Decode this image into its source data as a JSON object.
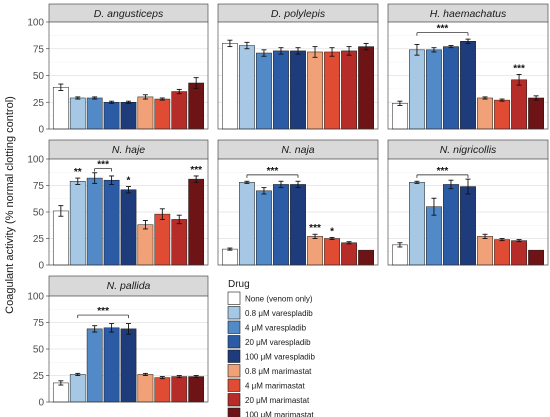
{
  "figure": {
    "ylabel": "Coagulant activity (% normal clotting control)",
    "legend_title": "Drug"
  },
  "treatments": [
    {
      "label": "None (venom only)",
      "color": "#ffffff"
    },
    {
      "label": "0.8 μM varespladib",
      "color": "#a6c8e4"
    },
    {
      "label": "4 μM varespladib",
      "color": "#5289c7"
    },
    {
      "label": "20 μM varespladib",
      "color": "#2c5ba6"
    },
    {
      "label": "100 μM varespladib",
      "color": "#1e3c7c"
    },
    {
      "label": "0.8 μM marimastat",
      "color": "#f0a178"
    },
    {
      "label": "4 μM marimastat",
      "color": "#e04b33"
    },
    {
      "label": "20 μM marimastat",
      "color": "#b52c29"
    },
    {
      "label": "100 μM marimastat",
      "color": "#6e1416"
    }
  ],
  "chart_data": [
    {
      "type": "bar",
      "title": "D. angusticeps",
      "ylim": [
        0,
        100
      ],
      "yticks": [
        "0",
        "25",
        "50",
        "75",
        "100"
      ],
      "values": [
        39,
        29,
        29,
        25,
        25,
        30,
        28,
        35,
        43
      ],
      "errors": [
        3,
        1,
        1,
        1,
        1,
        2,
        1,
        2,
        5
      ],
      "annotations": []
    },
    {
      "type": "bar",
      "title": "D. polylepis",
      "ylim": [
        0,
        100
      ],
      "yticks": [],
      "values": [
        80,
        78,
        71,
        73,
        73,
        72,
        72,
        73,
        77
      ],
      "errors": [
        3,
        3,
        3,
        3,
        3,
        5,
        4,
        4,
        3
      ],
      "annotations": []
    },
    {
      "type": "bar",
      "title": "H. haemachatus",
      "ylim": [
        0,
        100
      ],
      "yticks": [],
      "values": [
        24,
        74,
        74,
        77,
        82,
        29,
        27,
        46,
        29
      ],
      "errors": [
        2,
        5,
        2,
        1,
        2,
        1,
        1,
        5,
        2
      ],
      "annotations": [
        {
          "text": "***",
          "from": 1,
          "to": 4,
          "y": 90
        },
        {
          "text": "***",
          "at": 7,
          "y": 53
        }
      ]
    },
    {
      "type": "bar",
      "title": "N. haje",
      "ylim": [
        0,
        100
      ],
      "yticks": [
        "0",
        "25",
        "50",
        "75",
        "100"
      ],
      "values": [
        51,
        79,
        82,
        80,
        71,
        38,
        48,
        43,
        81
      ],
      "errors": [
        5,
        3,
        5,
        4,
        3,
        4,
        5,
        4,
        3
      ],
      "annotations": [
        {
          "text": "**",
          "at": 1,
          "y": 84
        },
        {
          "text": "***",
          "from": 2,
          "to": 3,
          "y": 91
        },
        {
          "text": "*",
          "at": 4,
          "y": 76
        },
        {
          "text": "***",
          "at": 8,
          "y": 86
        }
      ]
    },
    {
      "type": "bar",
      "title": "N. naja",
      "ylim": [
        0,
        100
      ],
      "yticks": [],
      "values": [
        15,
        78,
        70,
        76,
        76,
        27,
        25,
        21,
        14
      ],
      "errors": [
        1,
        1,
        3,
        3,
        3,
        2,
        1,
        1,
        0
      ],
      "annotations": [
        {
          "text": "***",
          "from": 1,
          "to": 4,
          "y": 85
        },
        {
          "text": "***",
          "at": 5,
          "y": 31
        },
        {
          "text": "*",
          "at": 6,
          "y": 28
        }
      ]
    },
    {
      "type": "bar",
      "title": "N. nigricollis",
      "ylim": [
        0,
        100
      ],
      "yticks": [],
      "values": [
        19,
        78,
        55,
        76,
        74,
        27,
        24,
        23,
        14
      ],
      "errors": [
        2,
        1,
        8,
        4,
        7,
        2,
        1,
        1,
        0
      ],
      "annotations": [
        {
          "text": "***",
          "from": 1,
          "to": 4,
          "y": 85
        }
      ]
    },
    {
      "type": "bar",
      "title": "N. pallida",
      "ylim": [
        0,
        100
      ],
      "yticks": [
        "0",
        "25",
        "50",
        "75",
        "100"
      ],
      "values": [
        18,
        26,
        69,
        70,
        69,
        26,
        23,
        24,
        24
      ],
      "errors": [
        2,
        1,
        3,
        4,
        5,
        1,
        1,
        1,
        1
      ],
      "annotations": [
        {
          "text": "***",
          "from": 1,
          "to": 4,
          "y": 82
        }
      ]
    }
  ]
}
